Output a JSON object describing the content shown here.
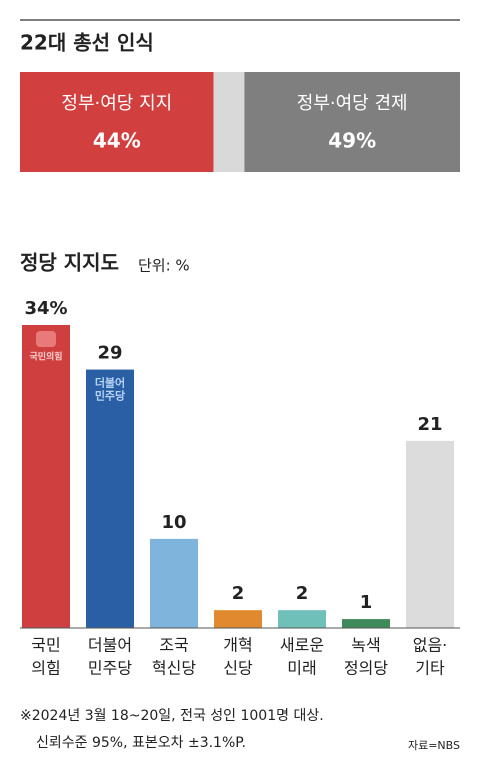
{
  "chart_data": [
    {
      "type": "stacked_bar",
      "title": "22대 총선 인식",
      "categories": [
        "정부·여당 지지",
        null,
        "정부·여당 견제"
      ],
      "values": [
        44,
        7,
        49
      ],
      "value_labels": [
        "44%",
        null,
        "49%"
      ],
      "colors": [
        "#d13f3f",
        "#d9d9d9",
        "#7f7f7f"
      ],
      "xlim": [
        0,
        100
      ]
    },
    {
      "type": "bar",
      "title": "정당 지지도",
      "subtitle": "단위: %",
      "categories": [
        [
          "국민",
          "의힘"
        ],
        [
          "더불어",
          "민주당"
        ],
        [
          "조국",
          "혁신당"
        ],
        [
          "개혁",
          "신당"
        ],
        [
          "새로운",
          "미래"
        ],
        [
          "녹색",
          "정의당"
        ],
        [
          "없음·",
          "기타"
        ]
      ],
      "values": [
        34,
        29,
        10,
        2,
        2,
        1,
        21
      ],
      "value_labels": [
        "34%",
        "29",
        "10",
        "2",
        "2",
        "1",
        "21"
      ],
      "colors": [
        "#cf3f3f",
        "#2a5fa6",
        "#7fb4dd",
        "#e0892f",
        "#6fc0b9",
        "#3f8a5b",
        "#dcdcdc"
      ],
      "badges": [
        [
          "국민의힘"
        ],
        [
          "더불어",
          "민주당"
        ],
        null,
        null,
        null,
        null,
        null
      ],
      "ylim": [
        0,
        34
      ]
    }
  ],
  "notes": [
    "※2024년 3월 18~20일, 전국 성인 1001명 대상.",
    "신뢰수준 95%, 표본오차 ±3.1%P."
  ],
  "source": "자료=NBS"
}
